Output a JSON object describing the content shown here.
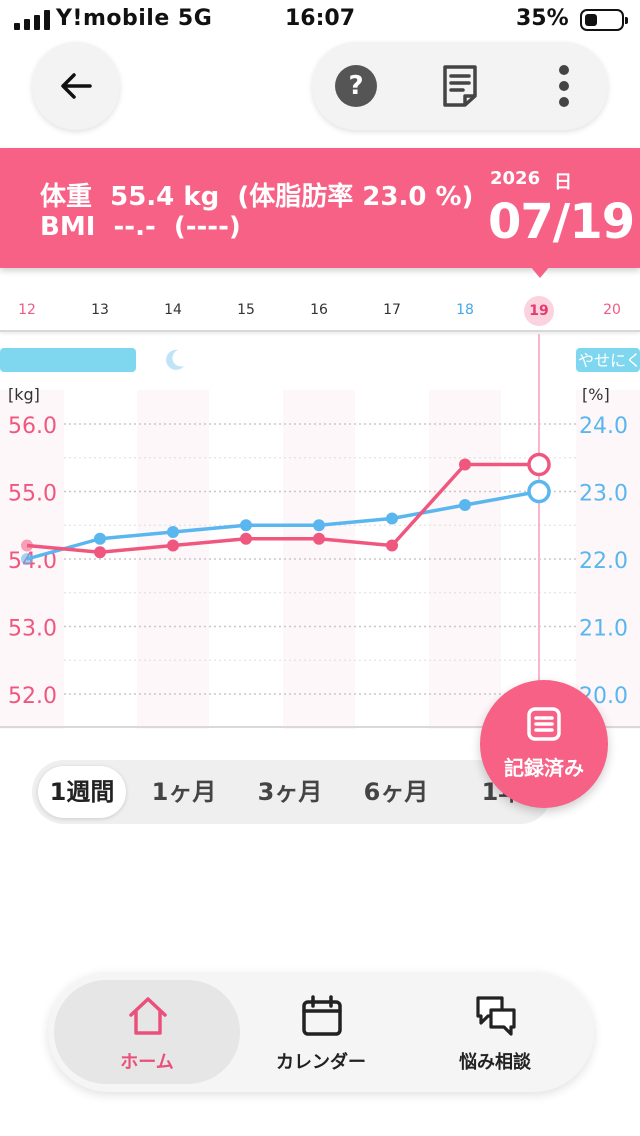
{
  "status_bar": {
    "carrier": "Y!mobile  5G",
    "time": "16:07",
    "battery": "35%"
  },
  "banner": {
    "weight_label": "体重",
    "weight_value": "55.4 kg",
    "body_fat_text": "(体脂肪率  23.0 %)",
    "bmi_label": "BMI",
    "bmi_value": "--.-",
    "bmi_status": "(----)",
    "year": "2026",
    "day_label": "日",
    "date": "07/19"
  },
  "date_strip": {
    "days": [
      "12",
      "13",
      "14",
      "15",
      "16",
      "17",
      "18",
      "19",
      "20"
    ],
    "selected": "19"
  },
  "chart_data": {
    "type": "line",
    "x": [
      "12",
      "13",
      "14",
      "15",
      "16",
      "17",
      "18",
      "19"
    ],
    "left_axis_label": "[kg]",
    "right_axis_label": "[%]",
    "left_ticks": [
      "56.0",
      "55.0",
      "54.0",
      "53.0",
      "52.0"
    ],
    "right_ticks": [
      "24.0",
      "23.0",
      "22.0",
      "21.0",
      "20.0"
    ],
    "left_range": [
      51.6,
      56.4
    ],
    "right_range": [
      19.6,
      24.4
    ],
    "weight_color": "#f0577f",
    "body_fat_color": "#5ab6ef",
    "weight_values": [
      54.2,
      54.1,
      54.2,
      54.3,
      54.3,
      54.2,
      55.4,
      55.4
    ],
    "body_fat_values": [
      22.0,
      22.3,
      22.4,
      22.5,
      22.5,
      22.6,
      22.8,
      23.0
    ],
    "right_tag": "やせにく",
    "grid": true
  },
  "periods": [
    "1週間",
    "1ヶ月",
    "3ヶ月",
    "6ヶ月",
    "1年"
  ],
  "active_period": "1週間",
  "fab": {
    "label": "記録済み",
    "icon": "list-icon"
  },
  "tabs": [
    {
      "label": "ホーム",
      "icon": "home-icon",
      "active": true
    },
    {
      "label": "カレンダー",
      "icon": "calendar-icon",
      "active": false
    },
    {
      "label": "悩み相談",
      "icon": "chat-icon",
      "active": false
    }
  ],
  "colors": {
    "accent": "#f76186",
    "blue": "#5ab6ef"
  }
}
